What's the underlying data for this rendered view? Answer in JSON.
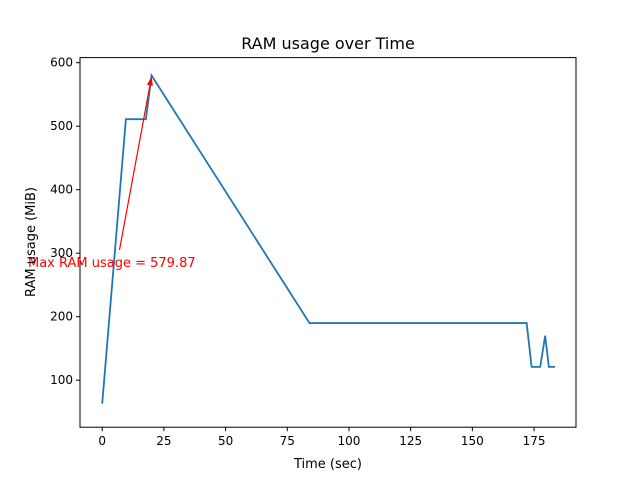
{
  "chart_data": {
    "type": "line",
    "title": "RAM usage over Time",
    "xlabel": "Time (sec)",
    "ylabel": "RAM usage (MiB)",
    "xlim": [
      -9,
      192
    ],
    "ylim": [
      26,
      608
    ],
    "xticks": [
      0,
      25,
      50,
      75,
      100,
      125,
      150,
      175
    ],
    "yticks": [
      100,
      200,
      300,
      400,
      500,
      600
    ],
    "grid": false,
    "series": [
      {
        "color": "#1f77b4",
        "x": [
          0,
          9.6,
          17.7,
          20,
          84,
          172,
          174,
          177.5,
          179.5,
          181,
          183.5
        ],
        "y": [
          63,
          511,
          511,
          579.87,
          190,
          190,
          121,
          121,
          170,
          121,
          121
        ]
      }
    ],
    "annotation": {
      "text": "Max RAM usage = 579.87",
      "color": "#ff0000",
      "point": [
        20,
        579.87
      ],
      "text_pos": [
        7,
        305
      ]
    }
  }
}
